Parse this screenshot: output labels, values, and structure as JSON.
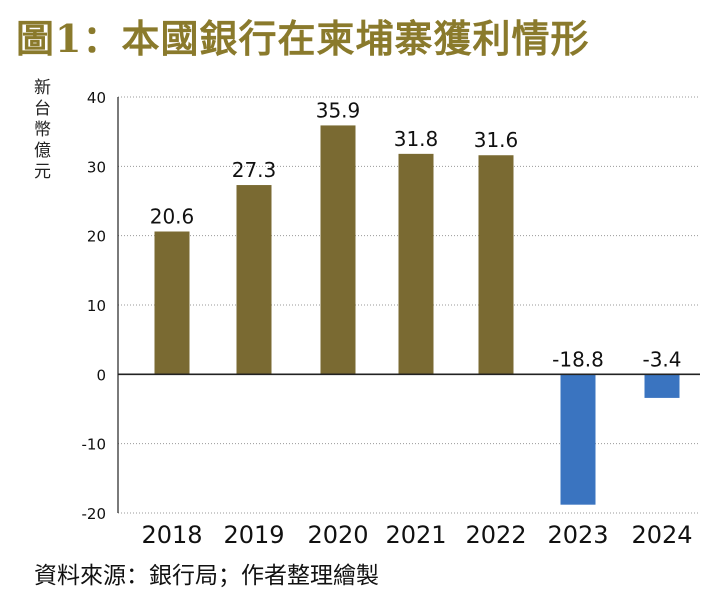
{
  "title": "圖1：本國銀行在柬埔寨獲利情形",
  "title_color": "#8a7a2c",
  "unit_label": "新台幣億元",
  "source": "資料來源：銀行局；作者整理繪製",
  "chart_data": {
    "type": "bar",
    "title": "圖1：本國銀行在柬埔寨獲利情形",
    "ylabel": "新台幣億元",
    "xlabel": "",
    "categories": [
      "2018",
      "2019",
      "2020",
      "2021",
      "2022",
      "2023",
      "2024"
    ],
    "values": [
      20.6,
      27.3,
      35.9,
      31.8,
      31.6,
      -18.8,
      -3.4
    ],
    "data_labels": [
      "20.6",
      "27.3",
      "35.9",
      "31.8",
      "31.6",
      "-18.8",
      "-3.4"
    ],
    "ylim": [
      -20,
      40
    ],
    "yticks": [
      40,
      30,
      20,
      10,
      0,
      -10,
      -20
    ],
    "grid": true,
    "colors": {
      "positive": "#7a6a32",
      "negative": "#3a74c0"
    }
  }
}
